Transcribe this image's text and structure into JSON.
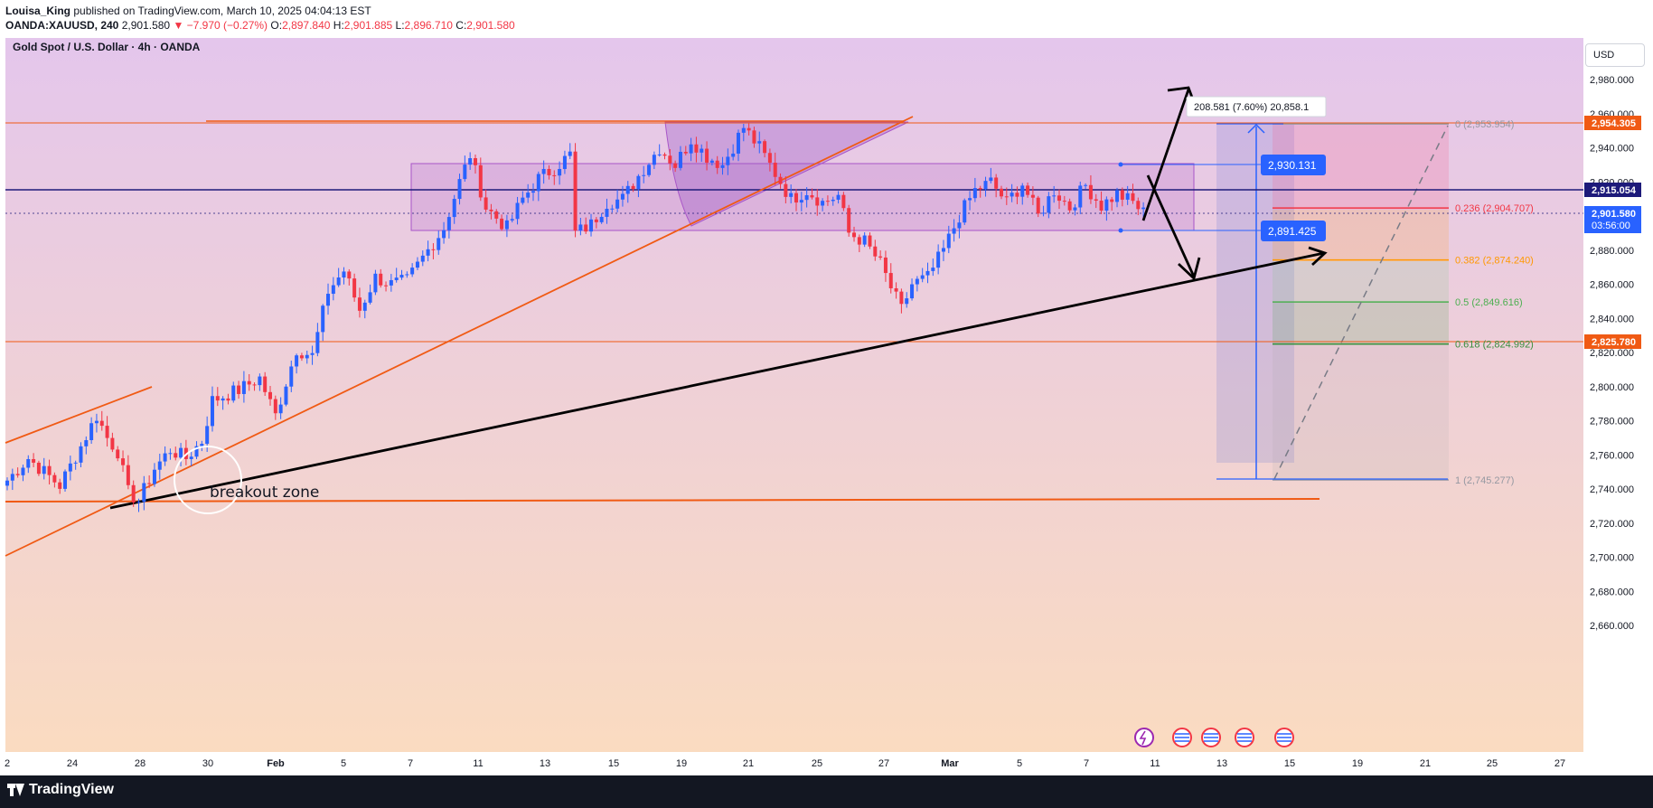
{
  "header": {
    "author": "Louisa_King",
    "published": " published on TradingView.com, March 10, 2025 04:04:13 EST",
    "symbol": "OANDA:XAUUSD, 240",
    "last": "2,901.580",
    "change": "▼ −7.970 (−0.27%)",
    "o_label": "O:",
    "o": "2,897.840",
    "h_label": "H:",
    "h": "2,901.885",
    "l_label": "L:",
    "l": "2,896.710",
    "c_label": "C:",
    "c": "2,901.580"
  },
  "chart_title": "Gold Spot / U.S. Dollar · 4h · OANDA",
  "currency": "USD",
  "footer_brand": "TradingView",
  "colors": {
    "bg_top": "#e4c6ec",
    "bg_bottom": "#fbdcbf",
    "up": "#2962ff",
    "down": "#f23645",
    "orange": "#f05a14",
    "navy": "#1d1a7a",
    "purple_box": "#a855c8",
    "fib_blue": "#2962ff"
  },
  "annotations": {
    "breakout": "breakout zone",
    "measure": "208.581 (7.60%) 20,858.1",
    "box_top": "2,930.131",
    "box_bottom": "2,891.425"
  },
  "axis_labels": {
    "l2954": "2,954.305",
    "l2915": "2,915.054",
    "l2901": "2,901.580",
    "countdown": "03:56:00",
    "l2825": "2,825.780"
  },
  "fib_levels": [
    {
      "label": "0 (2,953.954)",
      "price": 2953.954,
      "color": "#9598a1"
    },
    {
      "label": "0.236 (2,904.707)",
      "price": 2904.707,
      "color": "#f23645"
    },
    {
      "label": "0.382 (2,874.240)",
      "price": 2874.24,
      "color": "#ff9800"
    },
    {
      "label": "0.5 (2,849.616)",
      "price": 2849.616,
      "color": "#4caf50"
    },
    {
      "label": "0.618 (2,824.992)",
      "price": 2824.992,
      "color": "#388e3c"
    },
    {
      "label": "1 (2,745.277)",
      "price": 2745.277,
      "color": "#9598a1"
    }
  ],
  "chart_data": {
    "type": "candlestick",
    "title": "Gold Spot / U.S. Dollar · 4h · OANDA",
    "ylim": [
      2650,
      2990
    ],
    "y_ticks": [
      "2,980.000",
      "2,960.000",
      "2,940.000",
      "2,920.000",
      "2,900.000",
      "2,880.000",
      "2,860.000",
      "2,840.000",
      "2,820.000",
      "2,800.000",
      "2,780.000",
      "2,760.000",
      "2,740.000",
      "2,720.000",
      "2,700.000",
      "2,680.000",
      "2,660.000"
    ],
    "y_tick_values": [
      2980,
      2960,
      2940,
      2920,
      2900,
      2880,
      2860,
      2840,
      2820,
      2800,
      2780,
      2760,
      2740,
      2720,
      2700,
      2680,
      2660
    ],
    "x_ticks": [
      "2",
      "24",
      "28",
      "30",
      "Feb",
      "5",
      "7",
      "11",
      "13",
      "15",
      "19",
      "21",
      "25",
      "27",
      "Mar",
      "5",
      "7",
      "11",
      "13",
      "15",
      "19",
      "21",
      "25",
      "27"
    ],
    "horizontal_levels": [
      2954.305,
      2915.054,
      2825.78,
      2731
    ],
    "waypoints": [
      [
        0,
        2745
      ],
      [
        4,
        2758
      ],
      [
        10,
        2742
      ],
      [
        14,
        2765
      ],
      [
        17,
        2783
      ],
      [
        19,
        2770
      ],
      [
        21,
        2762
      ],
      [
        23,
        2738
      ],
      [
        25,
        2733
      ],
      [
        28,
        2752
      ],
      [
        31,
        2763
      ],
      [
        34,
        2758
      ],
      [
        37,
        2768
      ],
      [
        39,
        2792
      ],
      [
        44,
        2798
      ],
      [
        48,
        2805
      ],
      [
        51,
        2783
      ],
      [
        55,
        2822
      ],
      [
        58,
        2818
      ],
      [
        61,
        2856
      ],
      [
        64,
        2868
      ],
      [
        67,
        2845
      ],
      [
        70,
        2864
      ],
      [
        73,
        2860
      ],
      [
        76,
        2862
      ],
      [
        80,
        2880
      ],
      [
        83,
        2893
      ],
      [
        86,
        2920
      ],
      [
        88,
        2936
      ],
      [
        91,
        2905
      ],
      [
        95,
        2893
      ],
      [
        98,
        2910
      ],
      [
        101,
        2922
      ],
      [
        104,
        2928
      ],
      [
        107,
        2936
      ],
      [
        108,
        2890
      ],
      [
        111,
        2895
      ],
      [
        114,
        2908
      ],
      [
        117,
        2910
      ],
      [
        121,
        2928
      ],
      [
        124,
        2940
      ],
      [
        127,
        2930
      ],
      [
        130,
        2945
      ],
      [
        133,
        2935
      ],
      [
        136,
        2930
      ],
      [
        140,
        2952
      ],
      [
        143,
        2940
      ],
      [
        146,
        2925
      ],
      [
        149,
        2910
      ],
      [
        152,
        2915
      ],
      [
        155,
        2908
      ],
      [
        158,
        2912
      ],
      [
        160,
        2890
      ],
      [
        163,
        2885
      ],
      [
        166,
        2872
      ],
      [
        168,
        2858
      ],
      [
        170,
        2845
      ],
      [
        172,
        2860
      ],
      [
        175,
        2864
      ],
      [
        178,
        2880
      ],
      [
        181,
        2900
      ],
      [
        184,
        2915
      ],
      [
        187,
        2920
      ],
      [
        190,
        2908
      ],
      [
        193,
        2919
      ],
      [
        196,
        2900
      ],
      [
        199,
        2915
      ],
      [
        202,
        2905
      ],
      [
        205,
        2918
      ],
      [
        208,
        2906
      ],
      [
        211,
        2913
      ],
      [
        214,
        2908
      ],
      [
        216,
        2902
      ]
    ]
  }
}
